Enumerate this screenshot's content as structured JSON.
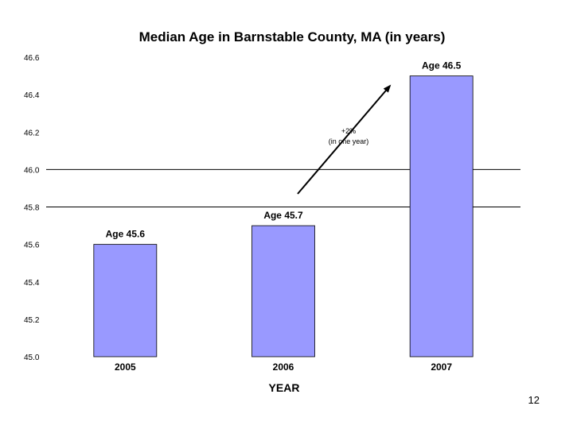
{
  "chart_data": {
    "type": "bar",
    "title": "Median Age in Barnstable County, MA (in years)",
    "xlabel": "YEAR",
    "ylabel": "",
    "categories": [
      "2005",
      "2006",
      "2007"
    ],
    "values": [
      45.6,
      45.7,
      46.5
    ],
    "data_labels": [
      "Age 45.6",
      "Age 45.7",
      "Age 46.5"
    ],
    "ylim": [
      45.0,
      46.6
    ],
    "yticks": [
      "45.0",
      "45.2",
      "45.4",
      "45.6",
      "45.8",
      "46.0",
      "46.2",
      "46.4",
      "46.6"
    ],
    "gridlines_at": [
      45.8,
      46.0
    ],
    "bar_color": "#9999ff",
    "annotation": {
      "lines": [
        "+2%",
        "(in one year)"
      ],
      "arrow": "pointing up-right toward the 2007 bar"
    },
    "legend": "none"
  },
  "slide": {
    "page_number": "12"
  }
}
